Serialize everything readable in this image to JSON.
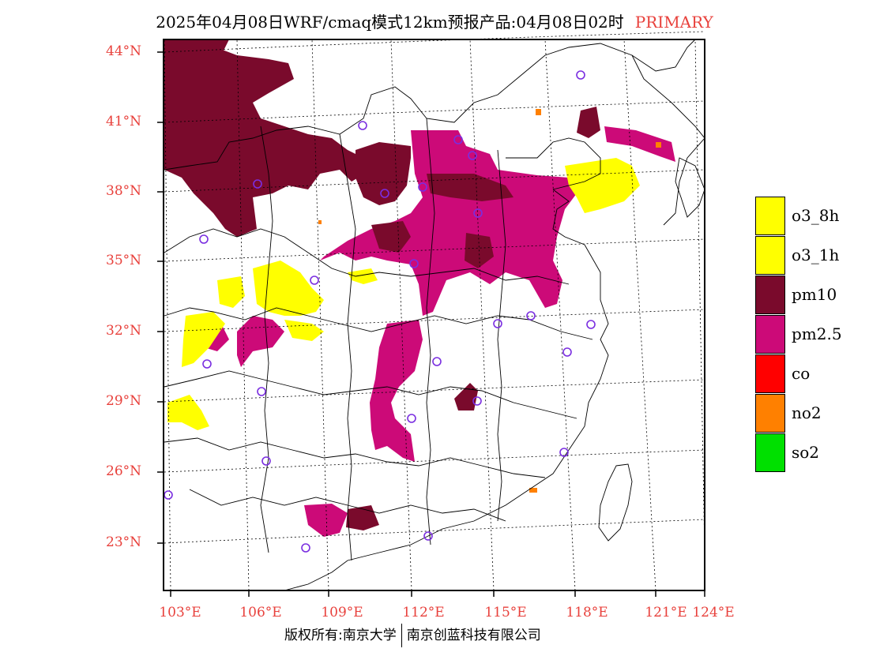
{
  "title": {
    "main": "2025年04月08日WRF/cmaq模式12km预报产品:04月08日02时",
    "tag": "PRIMARY"
  },
  "axes": {
    "lat_labels": [
      "44°N",
      "41°N",
      "38°N",
      "35°N",
      "32°N",
      "29°N",
      "26°N",
      "23°N"
    ],
    "lon_labels": [
      "103°E",
      "106°E",
      "109°E",
      "112°E",
      "115°E",
      "118°E",
      "121°E",
      "124°E"
    ]
  },
  "legend": [
    {
      "label": "o3_8h",
      "color": "#ffff00"
    },
    {
      "label": "o3_1h",
      "color": "#ffff00"
    },
    {
      "label": "pm10",
      "color": "#7a0a2c"
    },
    {
      "label": "pm2.5",
      "color": "#cc0a78"
    },
    {
      "label": "co",
      "color": "#ff0000"
    },
    {
      "label": "no2",
      "color": "#ff8000"
    },
    {
      "label": "so2",
      "color": "#00e000"
    }
  ],
  "footer": {
    "left": "版权所有:南京大学",
    "right": "南京创蓝科技有限公司"
  },
  "colors": {
    "tick_text": "#e8413c",
    "pm10": "#7a0a2c",
    "pm25": "#cc0a78",
    "o3": "#ffff00",
    "no2": "#ff8000",
    "station": "#7a2ee0"
  }
}
